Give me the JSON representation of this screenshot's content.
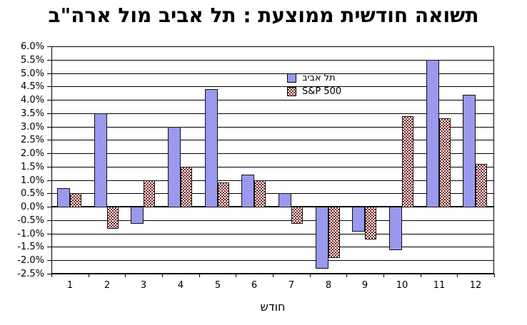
{
  "chart_data": {
    "type": "bar",
    "title": "תשואה חודשית ממוצעת : תל אביב מול ארה\"ב",
    "xlabel": "חודש",
    "ylabel": "",
    "categories": [
      "1",
      "2",
      "3",
      "4",
      "5",
      "6",
      "7",
      "8",
      "9",
      "10",
      "11",
      "12"
    ],
    "series": [
      {
        "name": "תל אביב",
        "color": "#9999EE",
        "pattern": "solid",
        "values": [
          0.7,
          3.5,
          -0.6,
          3.0,
          4.4,
          1.2,
          0.5,
          -2.3,
          -0.9,
          -1.6,
          5.5,
          4.2
        ]
      },
      {
        "name": "S&P 500",
        "color": "#7A2020",
        "pattern": "checker",
        "values": [
          0.5,
          -0.8,
          1.0,
          1.5,
          0.9,
          1.0,
          -0.6,
          -1.9,
          -1.2,
          3.4,
          3.3,
          1.6
        ]
      }
    ],
    "ylim": [
      -2.5,
      6.0
    ],
    "ytick_step": 0.5,
    "ytick_labels": [
      "6.0%",
      "5.5%",
      "5.0%",
      "4.5%",
      "4.0%",
      "3.5%",
      "3.0%",
      "2.5%",
      "2.0%",
      "1.5%",
      "1.0%",
      "0.5%",
      "0.0%",
      "-0.5%",
      "-1.0%",
      "-1.5%",
      "-2.0%",
      "-2.5%"
    ],
    "grid": true,
    "legend_position": "inside-top-center",
    "background": "#FFFFFF",
    "bar_border_color": "#000000"
  }
}
